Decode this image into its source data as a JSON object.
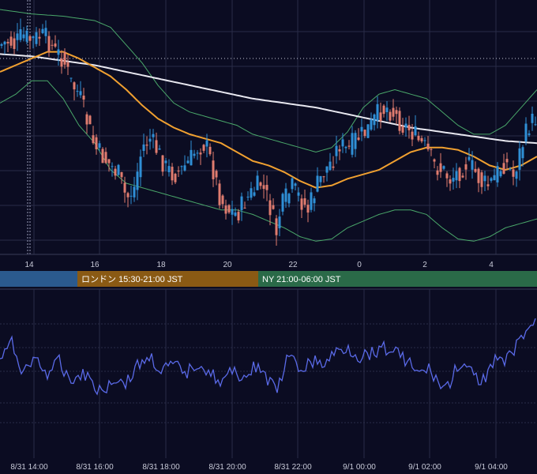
{
  "colors": {
    "background": "#0b0c22",
    "grid": "#2a2c48",
    "candle_up": "#2f8fd6",
    "candle_down": "#e07c6f",
    "ma_orange": "#f0a030",
    "ma_white": "#e8e8f0",
    "bollinger": "#4aa86a",
    "oscillator": "#5a6ae8",
    "session_tokyo": "#2b5a8e",
    "session_london": "#8a5a14",
    "session_ny": "#2a6a48"
  },
  "sessions": [
    {
      "label": "",
      "color": "#2b5a8e"
    },
    {
      "label": "ロンドン 15:30-21:00 JST",
      "color": "#8a5a14"
    },
    {
      "label": "NY 21:00-06:00 JST",
      "color": "#2a6a48"
    }
  ],
  "chart_data": [
    {
      "type": "candlestick",
      "x_tick_labels": [
        "14",
        "16",
        "18",
        "20",
        "22",
        "0",
        "2",
        "4"
      ],
      "grid": true,
      "overlays": [
        "moving-average-short",
        "moving-average-long",
        "bollinger-bands"
      ],
      "shape": [
        [
          0,
          0.16
        ],
        [
          6,
          0.15
        ],
        [
          12,
          0.14
        ],
        [
          18,
          0.16
        ],
        [
          24,
          0.13
        ],
        [
          30,
          0.12
        ],
        [
          40,
          0.14
        ],
        [
          50,
          0.12
        ],
        [
          60,
          0.13
        ],
        [
          70,
          0.19
        ],
        [
          80,
          0.22
        ],
        [
          90,
          0.33
        ],
        [
          100,
          0.38
        ],
        [
          110,
          0.5
        ],
        [
          120,
          0.62
        ],
        [
          130,
          0.66
        ],
        [
          140,
          0.7
        ],
        [
          150,
          0.74
        ],
        [
          160,
          0.85
        ],
        [
          170,
          0.8
        ],
        [
          180,
          0.62
        ],
        [
          190,
          0.58
        ],
        [
          200,
          0.64
        ],
        [
          210,
          0.71
        ],
        [
          220,
          0.74
        ],
        [
          230,
          0.72
        ],
        [
          240,
          0.68
        ],
        [
          250,
          0.62
        ],
        [
          260,
          0.6
        ],
        [
          270,
          0.72
        ],
        [
          280,
          0.86
        ],
        [
          290,
          0.9
        ],
        [
          300,
          0.92
        ],
        [
          310,
          0.86
        ],
        [
          320,
          0.82
        ],
        [
          330,
          0.78
        ],
        [
          340,
          0.86
        ],
        [
          350,
          1.0
        ],
        [
          355,
          0.9
        ],
        [
          360,
          0.86
        ],
        [
          370,
          0.8
        ],
        [
          380,
          0.85
        ],
        [
          390,
          0.9
        ],
        [
          400,
          0.8
        ],
        [
          410,
          0.73
        ],
        [
          420,
          0.68
        ],
        [
          430,
          0.6
        ],
        [
          440,
          0.64
        ],
        [
          450,
          0.58
        ],
        [
          460,
          0.56
        ],
        [
          470,
          0.52
        ],
        [
          480,
          0.46
        ],
        [
          490,
          0.44
        ],
        [
          500,
          0.47
        ],
        [
          510,
          0.52
        ],
        [
          520,
          0.54
        ],
        [
          530,
          0.59
        ],
        [
          540,
          0.63
        ],
        [
          550,
          0.7
        ],
        [
          560,
          0.72
        ],
        [
          570,
          0.76
        ],
        [
          580,
          0.73
        ],
        [
          590,
          0.69
        ],
        [
          600,
          0.72
        ],
        [
          610,
          0.78
        ],
        [
          620,
          0.79
        ],
        [
          630,
          0.73
        ],
        [
          640,
          0.68
        ],
        [
          650,
          0.75
        ],
        [
          660,
          0.62
        ],
        [
          670,
          0.52
        ],
        [
          680,
          0.48
        ]
      ],
      "ma_short_shape": [
        [
          0,
          0.28
        ],
        [
          20,
          0.25
        ],
        [
          40,
          0.22
        ],
        [
          60,
          0.19
        ],
        [
          80,
          0.19
        ],
        [
          100,
          0.22
        ],
        [
          120,
          0.26
        ],
        [
          140,
          0.3
        ],
        [
          160,
          0.36
        ],
        [
          180,
          0.43
        ],
        [
          200,
          0.49
        ],
        [
          220,
          0.53
        ],
        [
          240,
          0.56
        ],
        [
          260,
          0.58
        ],
        [
          280,
          0.6
        ],
        [
          300,
          0.64
        ],
        [
          320,
          0.68
        ],
        [
          340,
          0.7
        ],
        [
          360,
          0.73
        ],
        [
          380,
          0.77
        ],
        [
          400,
          0.8
        ],
        [
          420,
          0.79
        ],
        [
          440,
          0.76
        ],
        [
          460,
          0.74
        ],
        [
          480,
          0.72
        ],
        [
          500,
          0.68
        ],
        [
          520,
          0.64
        ],
        [
          540,
          0.62
        ],
        [
          560,
          0.62
        ],
        [
          580,
          0.63
        ],
        [
          600,
          0.66
        ],
        [
          620,
          0.7
        ],
        [
          640,
          0.72
        ],
        [
          660,
          0.7
        ],
        [
          680,
          0.66
        ]
      ],
      "ma_long_shape": [
        [
          0,
          0.2
        ],
        [
          40,
          0.21
        ],
        [
          80,
          0.23
        ],
        [
          120,
          0.25
        ],
        [
          160,
          0.28
        ],
        [
          200,
          0.31
        ],
        [
          240,
          0.34
        ],
        [
          280,
          0.37
        ],
        [
          320,
          0.4
        ],
        [
          360,
          0.42
        ],
        [
          400,
          0.44
        ],
        [
          440,
          0.47
        ],
        [
          480,
          0.5
        ],
        [
          520,
          0.53
        ],
        [
          560,
          0.55
        ],
        [
          600,
          0.57
        ],
        [
          640,
          0.59
        ],
        [
          680,
          0.6
        ]
      ],
      "bollinger_upper_shape": [
        [
          0,
          0.0
        ],
        [
          40,
          0.02
        ],
        [
          80,
          0.03
        ],
        [
          120,
          0.05
        ],
        [
          140,
          0.08
        ],
        [
          160,
          0.16
        ],
        [
          180,
          0.24
        ],
        [
          200,
          0.34
        ],
        [
          220,
          0.42
        ],
        [
          240,
          0.46
        ],
        [
          260,
          0.48
        ],
        [
          280,
          0.5
        ],
        [
          300,
          0.52
        ],
        [
          320,
          0.56
        ],
        [
          340,
          0.58
        ],
        [
          360,
          0.6
        ],
        [
          380,
          0.62
        ],
        [
          400,
          0.64
        ],
        [
          420,
          0.62
        ],
        [
          440,
          0.55
        ],
        [
          460,
          0.44
        ],
        [
          480,
          0.38
        ],
        [
          500,
          0.36
        ],
        [
          520,
          0.38
        ],
        [
          540,
          0.4
        ],
        [
          560,
          0.46
        ],
        [
          580,
          0.52
        ],
        [
          600,
          0.56
        ],
        [
          620,
          0.56
        ],
        [
          640,
          0.52
        ],
        [
          660,
          0.44
        ],
        [
          680,
          0.36
        ]
      ],
      "bollinger_lower_shape": [
        [
          0,
          0.42
        ],
        [
          20,
          0.38
        ],
        [
          40,
          0.32
        ],
        [
          60,
          0.32
        ],
        [
          80,
          0.4
        ],
        [
          100,
          0.52
        ],
        [
          120,
          0.6
        ],
        [
          140,
          0.72
        ],
        [
          160,
          0.78
        ],
        [
          180,
          0.8
        ],
        [
          200,
          0.82
        ],
        [
          220,
          0.84
        ],
        [
          240,
          0.86
        ],
        [
          260,
          0.88
        ],
        [
          280,
          0.9
        ],
        [
          300,
          0.9
        ],
        [
          320,
          0.92
        ],
        [
          340,
          0.95
        ],
        [
          360,
          0.98
        ],
        [
          380,
          1.02
        ],
        [
          400,
          1.04
        ],
        [
          420,
          1.03
        ],
        [
          440,
          0.98
        ],
        [
          460,
          0.95
        ],
        [
          480,
          0.92
        ],
        [
          500,
          0.9
        ],
        [
          520,
          0.9
        ],
        [
          540,
          0.92
        ],
        [
          560,
          0.98
        ],
        [
          580,
          1.03
        ],
        [
          600,
          1.04
        ],
        [
          620,
          1.02
        ],
        [
          640,
          0.98
        ],
        [
          660,
          0.96
        ],
        [
          680,
          0.94
        ]
      ]
    },
    {
      "type": "line",
      "x_tick_labels": [
        "8/31 14:00",
        "8/31 16:00",
        "8/31 18:00",
        "8/31 20:00",
        "8/31 22:00",
        "9/1 00:00",
        "9/1 02:00",
        "9/1 04:00"
      ],
      "grid": true,
      "shape": [
        [
          0,
          0.55
        ],
        [
          15,
          0.35
        ],
        [
          30,
          0.72
        ],
        [
          45,
          0.52
        ],
        [
          60,
          0.74
        ],
        [
          75,
          0.58
        ],
        [
          90,
          0.82
        ],
        [
          105,
          0.7
        ],
        [
          120,
          0.88
        ],
        [
          130,
          0.96
        ],
        [
          145,
          0.78
        ],
        [
          160,
          0.85
        ],
        [
          175,
          0.62
        ],
        [
          190,
          0.52
        ],
        [
          205,
          0.7
        ],
        [
          220,
          0.62
        ],
        [
          235,
          0.74
        ],
        [
          250,
          0.58
        ],
        [
          265,
          0.7
        ],
        [
          280,
          0.86
        ],
        [
          295,
          0.7
        ],
        [
          310,
          0.78
        ],
        [
          325,
          0.62
        ],
        [
          340,
          0.82
        ],
        [
          350,
          0.96
        ],
        [
          365,
          0.52
        ],
        [
          380,
          0.68
        ],
        [
          395,
          0.58
        ],
        [
          410,
          0.62
        ],
        [
          425,
          0.46
        ],
        [
          440,
          0.4
        ],
        [
          455,
          0.52
        ],
        [
          470,
          0.46
        ],
        [
          485,
          0.4
        ],
        [
          500,
          0.44
        ],
        [
          515,
          0.56
        ],
        [
          530,
          0.74
        ],
        [
          545,
          0.68
        ],
        [
          560,
          0.92
        ],
        [
          570,
          0.86
        ],
        [
          580,
          0.6
        ],
        [
          595,
          0.72
        ],
        [
          610,
          0.85
        ],
        [
          625,
          0.55
        ],
        [
          640,
          0.6
        ],
        [
          655,
          0.36
        ],
        [
          670,
          0.14
        ],
        [
          680,
          0.1
        ]
      ]
    }
  ]
}
